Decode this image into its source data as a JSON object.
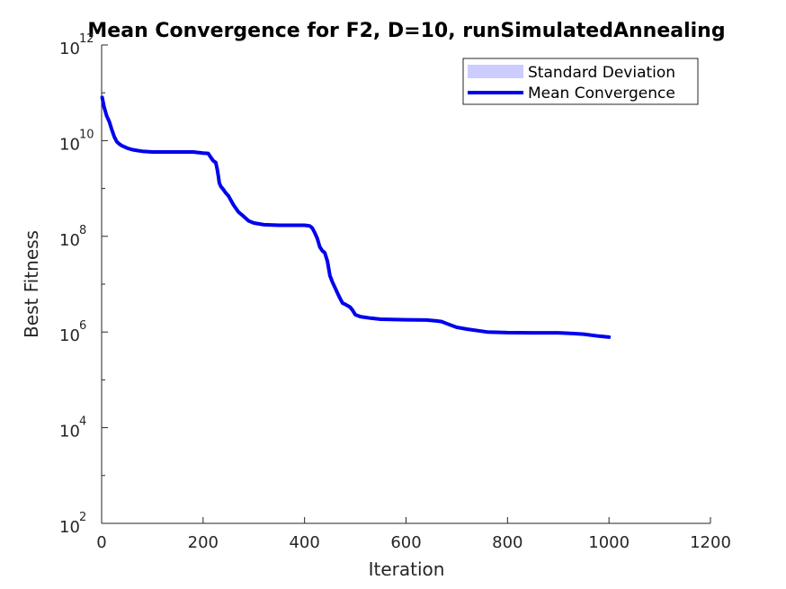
{
  "chart_data": {
    "type": "line",
    "title": "Mean Convergence for F2, D=10, runSimulatedAnnealing",
    "xlabel": "Iteration",
    "ylabel": "Best Fitness",
    "xlim": [
      0,
      1200
    ],
    "ylim": [
      100,
      1000000000000
    ],
    "yscale": "log",
    "xticks": [
      0,
      200,
      400,
      600,
      800,
      1000,
      1200
    ],
    "yticks": [
      {
        "value": 100,
        "base": "10",
        "exp": "2"
      },
      {
        "value": 10000,
        "base": "10",
        "exp": "4"
      },
      {
        "value": 1000000,
        "base": "10",
        "exp": "6"
      },
      {
        "value": 100000000,
        "base": "10",
        "exp": "8"
      },
      {
        "value": 10000000000,
        "base": "10",
        "exp": "10"
      },
      {
        "value": 1000000000000,
        "base": "10",
        "exp": "12"
      }
    ],
    "grid": false,
    "legend_position": "top-right",
    "legend": [
      {
        "label": "Standard Deviation",
        "kind": "patch",
        "color": "#ccccff"
      },
      {
        "label": "Mean Convergence",
        "kind": "line",
        "color": "#0000ee"
      }
    ],
    "series": [
      {
        "name": "Mean Convergence",
        "color": "#0000ee",
        "x": [
          1,
          5,
          10,
          15,
          20,
          25,
          30,
          35,
          40,
          50,
          60,
          70,
          80,
          90,
          100,
          120,
          150,
          180,
          200,
          210,
          215,
          220,
          225,
          228,
          230,
          232,
          235,
          240,
          245,
          250,
          255,
          260,
          265,
          270,
          280,
          290,
          300,
          320,
          350,
          380,
          400,
          410,
          415,
          420,
          425,
          430,
          435,
          440,
          445,
          450,
          455,
          460,
          465,
          470,
          475,
          480,
          490,
          495,
          500,
          510,
          530,
          550,
          600,
          640,
          660,
          670,
          680,
          700,
          720,
          760,
          800,
          850,
          900,
          920,
          950,
          980,
          1000
        ],
        "y": [
          80000000000,
          50000000000,
          33000000000,
          25000000000,
          17000000000,
          12000000000,
          9500000000,
          8500000000,
          7800000000,
          7000000000,
          6500000000,
          6200000000,
          6000000000,
          5900000000,
          5800000000,
          5800000000,
          5800000000,
          5800000000,
          5500000000,
          5400000000,
          4500000000,
          3800000000,
          3500000000,
          2500000000,
          1800000000,
          1300000000,
          1100000000,
          950000000,
          800000000,
          700000000,
          560000000,
          450000000,
          380000000,
          320000000,
          260000000,
          210000000,
          190000000,
          175000000,
          170000000,
          170000000,
          170000000,
          165000000,
          150000000,
          120000000,
          90000000,
          60000000,
          50000000,
          45000000,
          30000000,
          15000000,
          11000000,
          8500000,
          6500000,
          5000000,
          4000000,
          3800000,
          3300000,
          2800000,
          2300000,
          2100000,
          1950000,
          1850000,
          1800000,
          1780000,
          1700000,
          1650000,
          1500000,
          1250000,
          1150000,
          1000000,
          970000,
          960000,
          960000,
          940000,
          900000,
          820000,
          780000
        ]
      }
    ]
  }
}
